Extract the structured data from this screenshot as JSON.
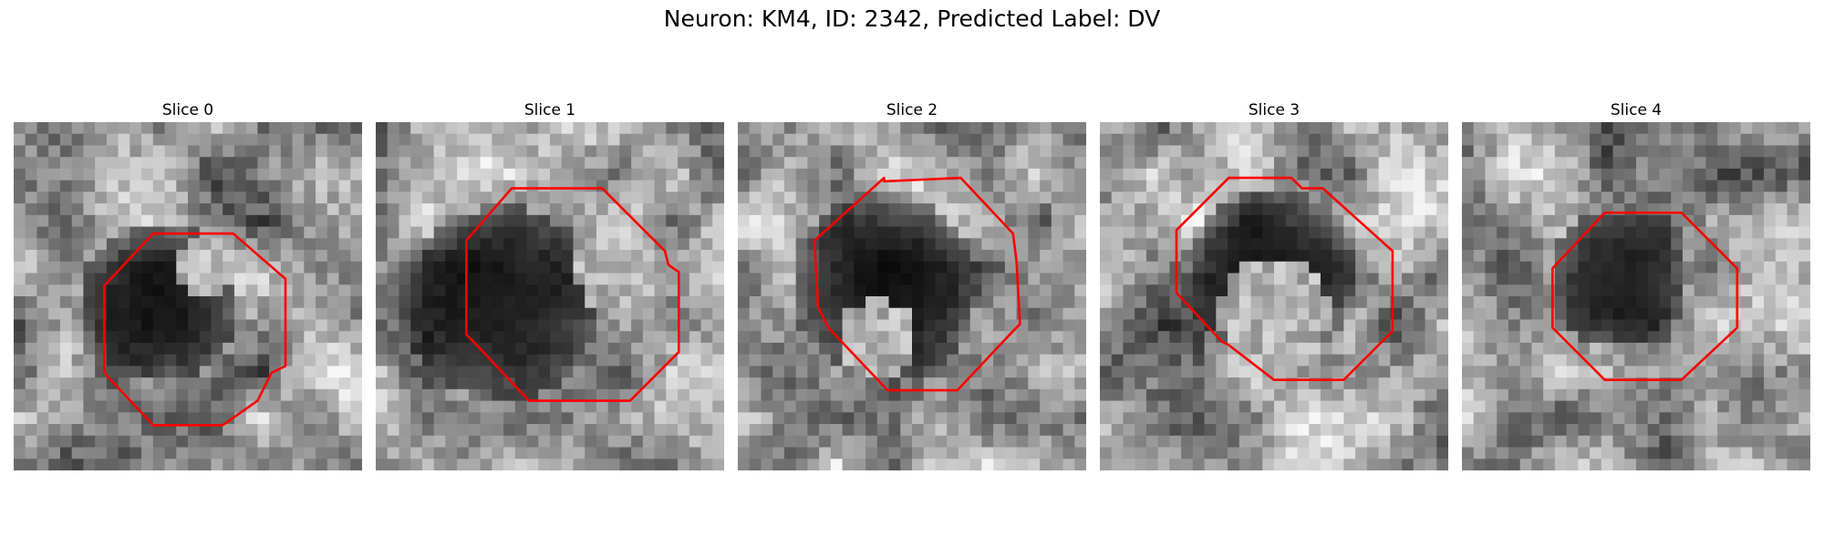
{
  "figure": {
    "title": "Neuron: KM4, ID: 2342, Predicted Label: DV",
    "contour_color": "#ff0000"
  },
  "slices": [
    {
      "label": "Slice 0",
      "dark_center": [
        0.42,
        0.52
      ],
      "dark_radius": 0.23,
      "bright_core": [
        0.55,
        0.42
      ],
      "bright_core_radius": 0.05,
      "contour": [
        [
          0.4,
          0.32
        ],
        [
          0.63,
          0.32
        ],
        [
          0.78,
          0.45
        ],
        [
          0.78,
          0.7
        ],
        [
          0.74,
          0.72
        ],
        [
          0.7,
          0.8
        ],
        [
          0.6,
          0.87
        ],
        [
          0.4,
          0.87
        ],
        [
          0.26,
          0.72
        ],
        [
          0.26,
          0.47
        ]
      ]
    },
    {
      "label": "Slice 1",
      "dark_center": [
        0.36,
        0.52
      ],
      "dark_radius": 0.28,
      "bright_core": [
        0.7,
        0.42
      ],
      "bright_core_radius": 0.08,
      "contour": [
        [
          0.39,
          0.19
        ],
        [
          0.65,
          0.19
        ],
        [
          0.83,
          0.37
        ],
        [
          0.84,
          0.41
        ],
        [
          0.87,
          0.43
        ],
        [
          0.87,
          0.66
        ],
        [
          0.73,
          0.8
        ],
        [
          0.44,
          0.8
        ],
        [
          0.29,
          0.64
        ],
        [
          0.26,
          0.61
        ],
        [
          0.26,
          0.34
        ]
      ]
    },
    {
      "label": "Slice 2",
      "dark_center": [
        0.42,
        0.47
      ],
      "dark_radius": 0.27,
      "bright_core": [
        0.4,
        0.62
      ],
      "bright_core_radius": 0.07,
      "contour": [
        [
          0.42,
          0.17
        ],
        [
          0.64,
          0.16
        ],
        [
          0.79,
          0.32
        ],
        [
          0.8,
          0.4
        ],
        [
          0.81,
          0.58
        ],
        [
          0.79,
          0.6
        ],
        [
          0.63,
          0.77
        ],
        [
          0.43,
          0.77
        ],
        [
          0.26,
          0.59
        ],
        [
          0.23,
          0.53
        ],
        [
          0.22,
          0.34
        ],
        [
          0.42,
          0.16
        ]
      ]
    },
    {
      "label": "Slice 3",
      "dark_center": [
        0.5,
        0.43
      ],
      "dark_radius": 0.24,
      "bright_core": [
        0.5,
        0.55
      ],
      "bright_core_radius": 0.1,
      "contour": [
        [
          0.37,
          0.16
        ],
        [
          0.55,
          0.16
        ],
        [
          0.58,
          0.19
        ],
        [
          0.64,
          0.19
        ],
        [
          0.84,
          0.37
        ],
        [
          0.84,
          0.6
        ],
        [
          0.7,
          0.74
        ],
        [
          0.5,
          0.74
        ],
        [
          0.37,
          0.64
        ],
        [
          0.35,
          0.63
        ],
        [
          0.22,
          0.49
        ],
        [
          0.22,
          0.31
        ]
      ]
    },
    {
      "label": "Slice 4",
      "dark_center": [
        0.45,
        0.45
      ],
      "dark_radius": 0.2,
      "bright_core": [
        0.45,
        0.45
      ],
      "bright_core_radius": 0.0,
      "contour": [
        [
          0.41,
          0.26
        ],
        [
          0.63,
          0.26
        ],
        [
          0.79,
          0.42
        ],
        [
          0.79,
          0.59
        ],
        [
          0.63,
          0.74
        ],
        [
          0.41,
          0.74
        ],
        [
          0.26,
          0.59
        ],
        [
          0.26,
          0.42
        ]
      ]
    }
  ]
}
